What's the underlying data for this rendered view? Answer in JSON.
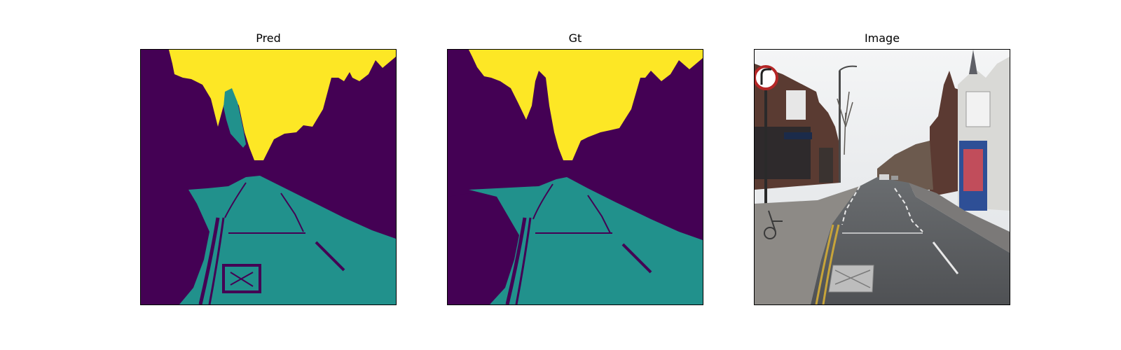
{
  "figure": {
    "panels": [
      {
        "title": "Pred"
      },
      {
        "title": "Gt"
      },
      {
        "title": "Image"
      }
    ]
  },
  "colors": {
    "background_class": "#440154",
    "road_class": "#21918c",
    "sky_class": "#fde725"
  }
}
